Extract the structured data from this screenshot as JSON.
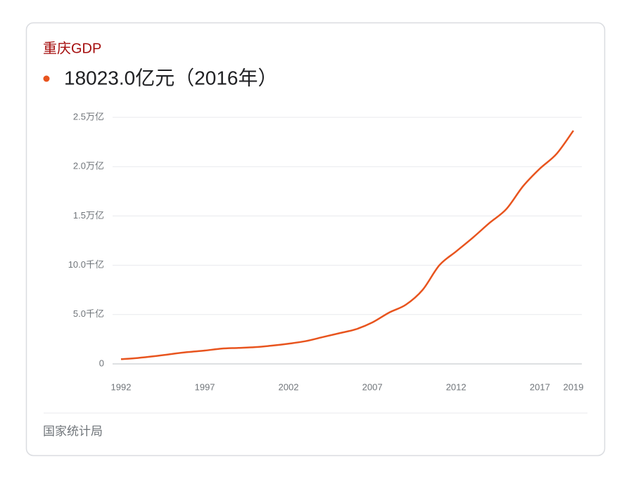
{
  "title": "重庆GDP",
  "headline": "18023.0亿元（2016年）",
  "source": "国家统计局",
  "chart_data": {
    "type": "line",
    "x": [
      1992,
      1993,
      1994,
      1995,
      1996,
      1997,
      1998,
      1999,
      2000,
      2001,
      2002,
      2003,
      2004,
      2005,
      2006,
      2007,
      2008,
      2009,
      2010,
      2011,
      2012,
      2013,
      2014,
      2015,
      2016,
      2017,
      2018,
      2019
    ],
    "series": [
      {
        "color": "#e8541e",
        "values": [
          480,
          600,
          780,
          1000,
          1200,
          1350,
          1550,
          1620,
          1700,
          1850,
          2050,
          2300,
          2700,
          3100,
          3500,
          4200,
          5200,
          6000,
          7500,
          10000,
          11400,
          12800,
          14300,
          15700,
          18023,
          19800,
          21300,
          23650
        ]
      }
    ],
    "xlim": [
      1992,
      2019
    ],
    "xticks": [
      1992,
      1997,
      2002,
      2007,
      2012,
      2017,
      2019
    ],
    "ylim": [
      0,
      25000
    ],
    "yticks": [
      0,
      {
        "value": 5000,
        "label": "5.0千亿"
      },
      {
        "value": 10000,
        "label": "10.0千亿"
      },
      {
        "value": 15000,
        "label": "1.5万亿"
      },
      {
        "value": 20000,
        "label": "2.0万亿"
      },
      {
        "value": 25000,
        "label": "2.5万亿"
      }
    ],
    "grid": true
  }
}
